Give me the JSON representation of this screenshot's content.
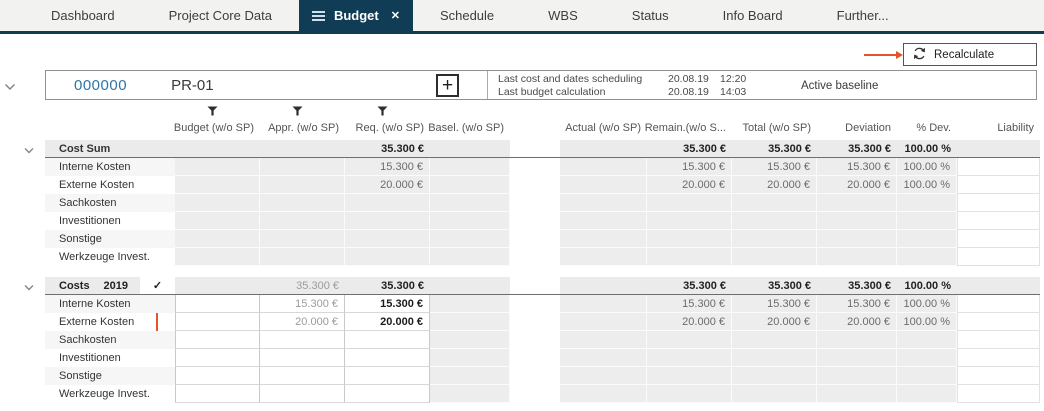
{
  "tab_bar": {
    "tabs": [
      {
        "label": "Dashboard",
        "active": false
      },
      {
        "label": "Project Core Data",
        "active": false
      },
      {
        "label": "Budget",
        "active": true
      },
      {
        "label": "Schedule",
        "active": false
      },
      {
        "label": "WBS",
        "active": false
      },
      {
        "label": "Status",
        "active": false
      },
      {
        "label": "Info Board",
        "active": false
      },
      {
        "label": "Further...",
        "active": false
      }
    ]
  },
  "toolbar": {
    "recalculate_label": "Recalculate"
  },
  "project_header": {
    "number": "000000",
    "code": "PR-01",
    "add_button": "+",
    "info_rows": [
      {
        "label": "Last cost and dates scheduling",
        "date": "20.08.19",
        "time": "12:20"
      },
      {
        "label": "Last budget calculation",
        "date": "20.08.19",
        "time": "14:03"
      }
    ],
    "baseline_label": "Active baseline"
  },
  "table": {
    "columns": {
      "left": [
        "Budget (w/o SP)",
        "Appr. (w/o SP)",
        "Req. (w/o SP)",
        "Basel. (w/o SP)"
      ],
      "right": [
        "Actual (w/o SP)",
        "Remain.(w/o S...",
        "Total (w/o SP)",
        "Deviation",
        "% Dev.",
        "Liability"
      ]
    },
    "groups": [
      {
        "header": {
          "label": "Cost Sum",
          "req": "35.300 €",
          "remain": "35.300 €",
          "total": "35.300 €",
          "deviation": "35.300 €",
          "pdev": "100.00 %"
        },
        "rows": [
          {
            "label": "Interne Kosten",
            "req": "15.300 €",
            "remain": "15.300 €",
            "total": "15.300 €",
            "deviation": "15.300 €",
            "pdev": "100.00 %"
          },
          {
            "label": "Externe Kosten",
            "req": "20.000 €",
            "remain": "20.000 €",
            "total": "20.000 €",
            "deviation": "20.000 €",
            "pdev": "100.00 %"
          },
          {
            "label": "Sachkosten"
          },
          {
            "label": "Investitionen"
          },
          {
            "label": "Sonstige"
          },
          {
            "label": "Werkzeuge Invest."
          }
        ]
      },
      {
        "header": {
          "label": "Costs",
          "year": "2019",
          "check": "✓",
          "appr": "35.300 €",
          "req": "35.300 €",
          "remain": "35.300 €",
          "total": "35.300 €",
          "deviation": "35.300 €",
          "pdev": "100.00 %"
        },
        "rows": [
          {
            "label": "Interne Kosten",
            "appr": "15.300 €",
            "req": "15.300 €",
            "remain": "15.300 €",
            "total": "15.300 €",
            "deviation": "15.300 €",
            "pdev": "100.00 %"
          },
          {
            "label": "Externe Kosten",
            "appr": "20.000 €",
            "req": "20.000 €",
            "remain": "20.000 €",
            "total": "20.000 €",
            "deviation": "20.000 €",
            "pdev": "100.00 %"
          },
          {
            "label": "Sachkosten"
          },
          {
            "label": "Investitionen"
          },
          {
            "label": "Sonstige"
          },
          {
            "label": "Werkzeuge Invest."
          }
        ]
      }
    ]
  },
  "colors": {
    "accent_navy": "#113c55",
    "link_blue": "#2e75a8",
    "arrow_orange": "#e0562a"
  }
}
